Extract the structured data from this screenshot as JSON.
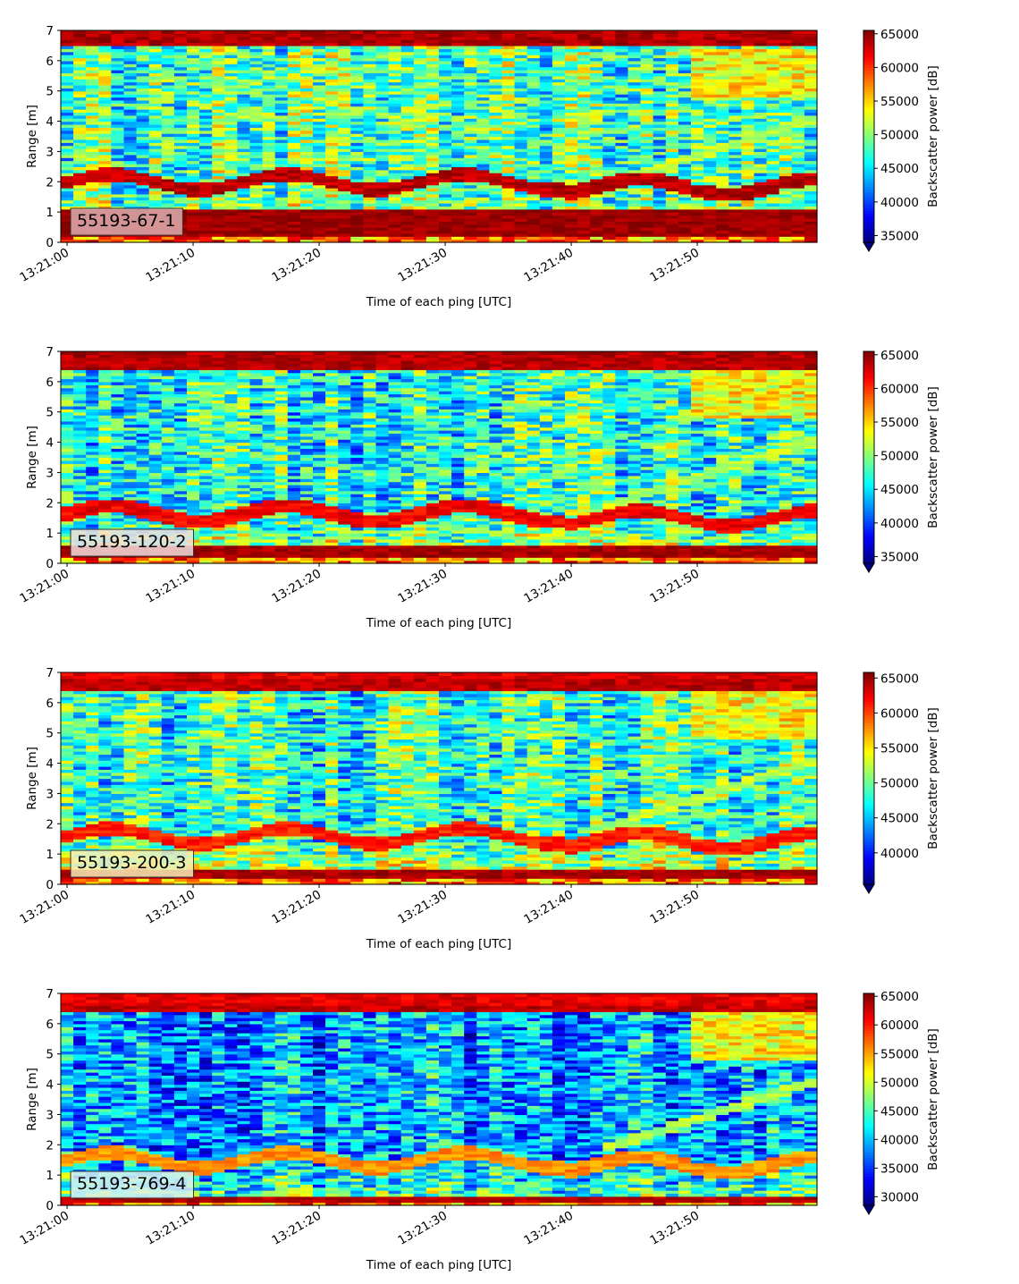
{
  "chart_data": [
    {
      "type": "heatmap",
      "label": "55193-67-1",
      "label_box_color": "#dcaeb0",
      "xlabel": "Time of each ping [UTC]",
      "ylabel": "Range [m]",
      "xticks": [
        "13:21:00",
        "13:21:10",
        "13:21:20",
        "13:21:30",
        "13:21:40",
        "13:21:50"
      ],
      "xlim_seconds": [
        -0.5,
        59.5
      ],
      "yticks": [
        0,
        1,
        2,
        3,
        4,
        5,
        6,
        7
      ],
      "ylim": [
        0,
        7
      ],
      "colorbar": {
        "label": "Backscatter power [dB]",
        "ticks": [
          35000,
          40000,
          45000,
          50000,
          55000,
          60000,
          65000
        ],
        "range": [
          34000,
          65500
        ],
        "extend": "min",
        "colormap": "jet"
      },
      "features": {
        "surface_band": [
          6.5,
          7.0
        ],
        "bottom_band": [
          0.25,
          1.05
        ],
        "bottom_strength": 1.0,
        "mid_layer_level": 2.0,
        "mid_layer_strength": 0.9,
        "background_level": 0.45
      }
    },
    {
      "type": "heatmap",
      "label": "55193-120-2",
      "label_box_color": "#f1dede",
      "xlabel": "Time of each ping [UTC]",
      "ylabel": "Range [m]",
      "xticks": [
        "13:21:00",
        "13:21:10",
        "13:21:20",
        "13:21:30",
        "13:21:40",
        "13:21:50"
      ],
      "xlim_seconds": [
        -0.5,
        59.5
      ],
      "yticks": [
        0,
        1,
        2,
        3,
        4,
        5,
        6,
        7
      ],
      "ylim": [
        0,
        7
      ],
      "colorbar": {
        "label": "Backscatter power [dB]",
        "ticks": [
          35000,
          40000,
          45000,
          50000,
          55000,
          60000,
          65000
        ],
        "range": [
          34000,
          65500
        ],
        "extend": "min",
        "colormap": "jet"
      },
      "features": {
        "surface_band": [
          6.45,
          6.95
        ],
        "bottom_band": [
          0.2,
          0.6
        ],
        "bottom_strength": 0.95,
        "mid_layer_level": 1.65,
        "mid_layer_strength": 0.75,
        "background_level": 0.4
      }
    },
    {
      "type": "heatmap",
      "label": "55193-200-3",
      "label_box_color": "#f6efb7",
      "xlabel": "Time of each ping [UTC]",
      "ylabel": "Range [m]",
      "xticks": [
        "13:21:00",
        "13:21:10",
        "13:21:20",
        "13:21:30",
        "13:21:40",
        "13:21:50"
      ],
      "xlim_seconds": [
        -0.5,
        59.5
      ],
      "yticks": [
        0,
        1,
        2,
        3,
        4,
        5,
        6,
        7
      ],
      "ylim": [
        0,
        7
      ],
      "colorbar": {
        "label": "Backscatter power [dB]",
        "ticks": [
          40000,
          45000,
          50000,
          55000,
          60000,
          65000
        ],
        "range": [
          35500,
          65800
        ],
        "extend": "min",
        "colormap": "jet"
      },
      "features": {
        "surface_band": [
          6.4,
          6.75
        ],
        "bottom_band": [
          0.2,
          0.5
        ],
        "bottom_strength": 0.9,
        "mid_layer_level": 1.6,
        "mid_layer_strength": 0.65,
        "background_level": 0.42
      }
    },
    {
      "type": "heatmap",
      "label": "55193-769-4",
      "label_box_color": "#d8f0ee",
      "xlabel": "Time of each ping [UTC]",
      "ylabel": "Range [m]",
      "xticks": [
        "13:21:00",
        "13:21:10",
        "13:21:20",
        "13:21:30",
        "13:21:40",
        "13:21:50"
      ],
      "xlim_seconds": [
        -0.5,
        59.5
      ],
      "yticks": [
        0,
        1,
        2,
        3,
        4,
        5,
        6,
        7
      ],
      "ylim": [
        0,
        7
      ],
      "colorbar": {
        "label": "Backscatter power [dB]",
        "ticks": [
          30000,
          35000,
          40000,
          45000,
          50000,
          55000,
          60000,
          65000
        ],
        "range": [
          28500,
          65500
        ],
        "extend": "min",
        "colormap": "jet"
      },
      "features": {
        "surface_band": [
          6.4,
          6.6
        ],
        "bottom_band": [
          0.15,
          0.3
        ],
        "bottom_strength": 0.85,
        "mid_layer_level": 1.5,
        "mid_layer_strength": 0.35,
        "background_level": 0.28
      }
    }
  ]
}
